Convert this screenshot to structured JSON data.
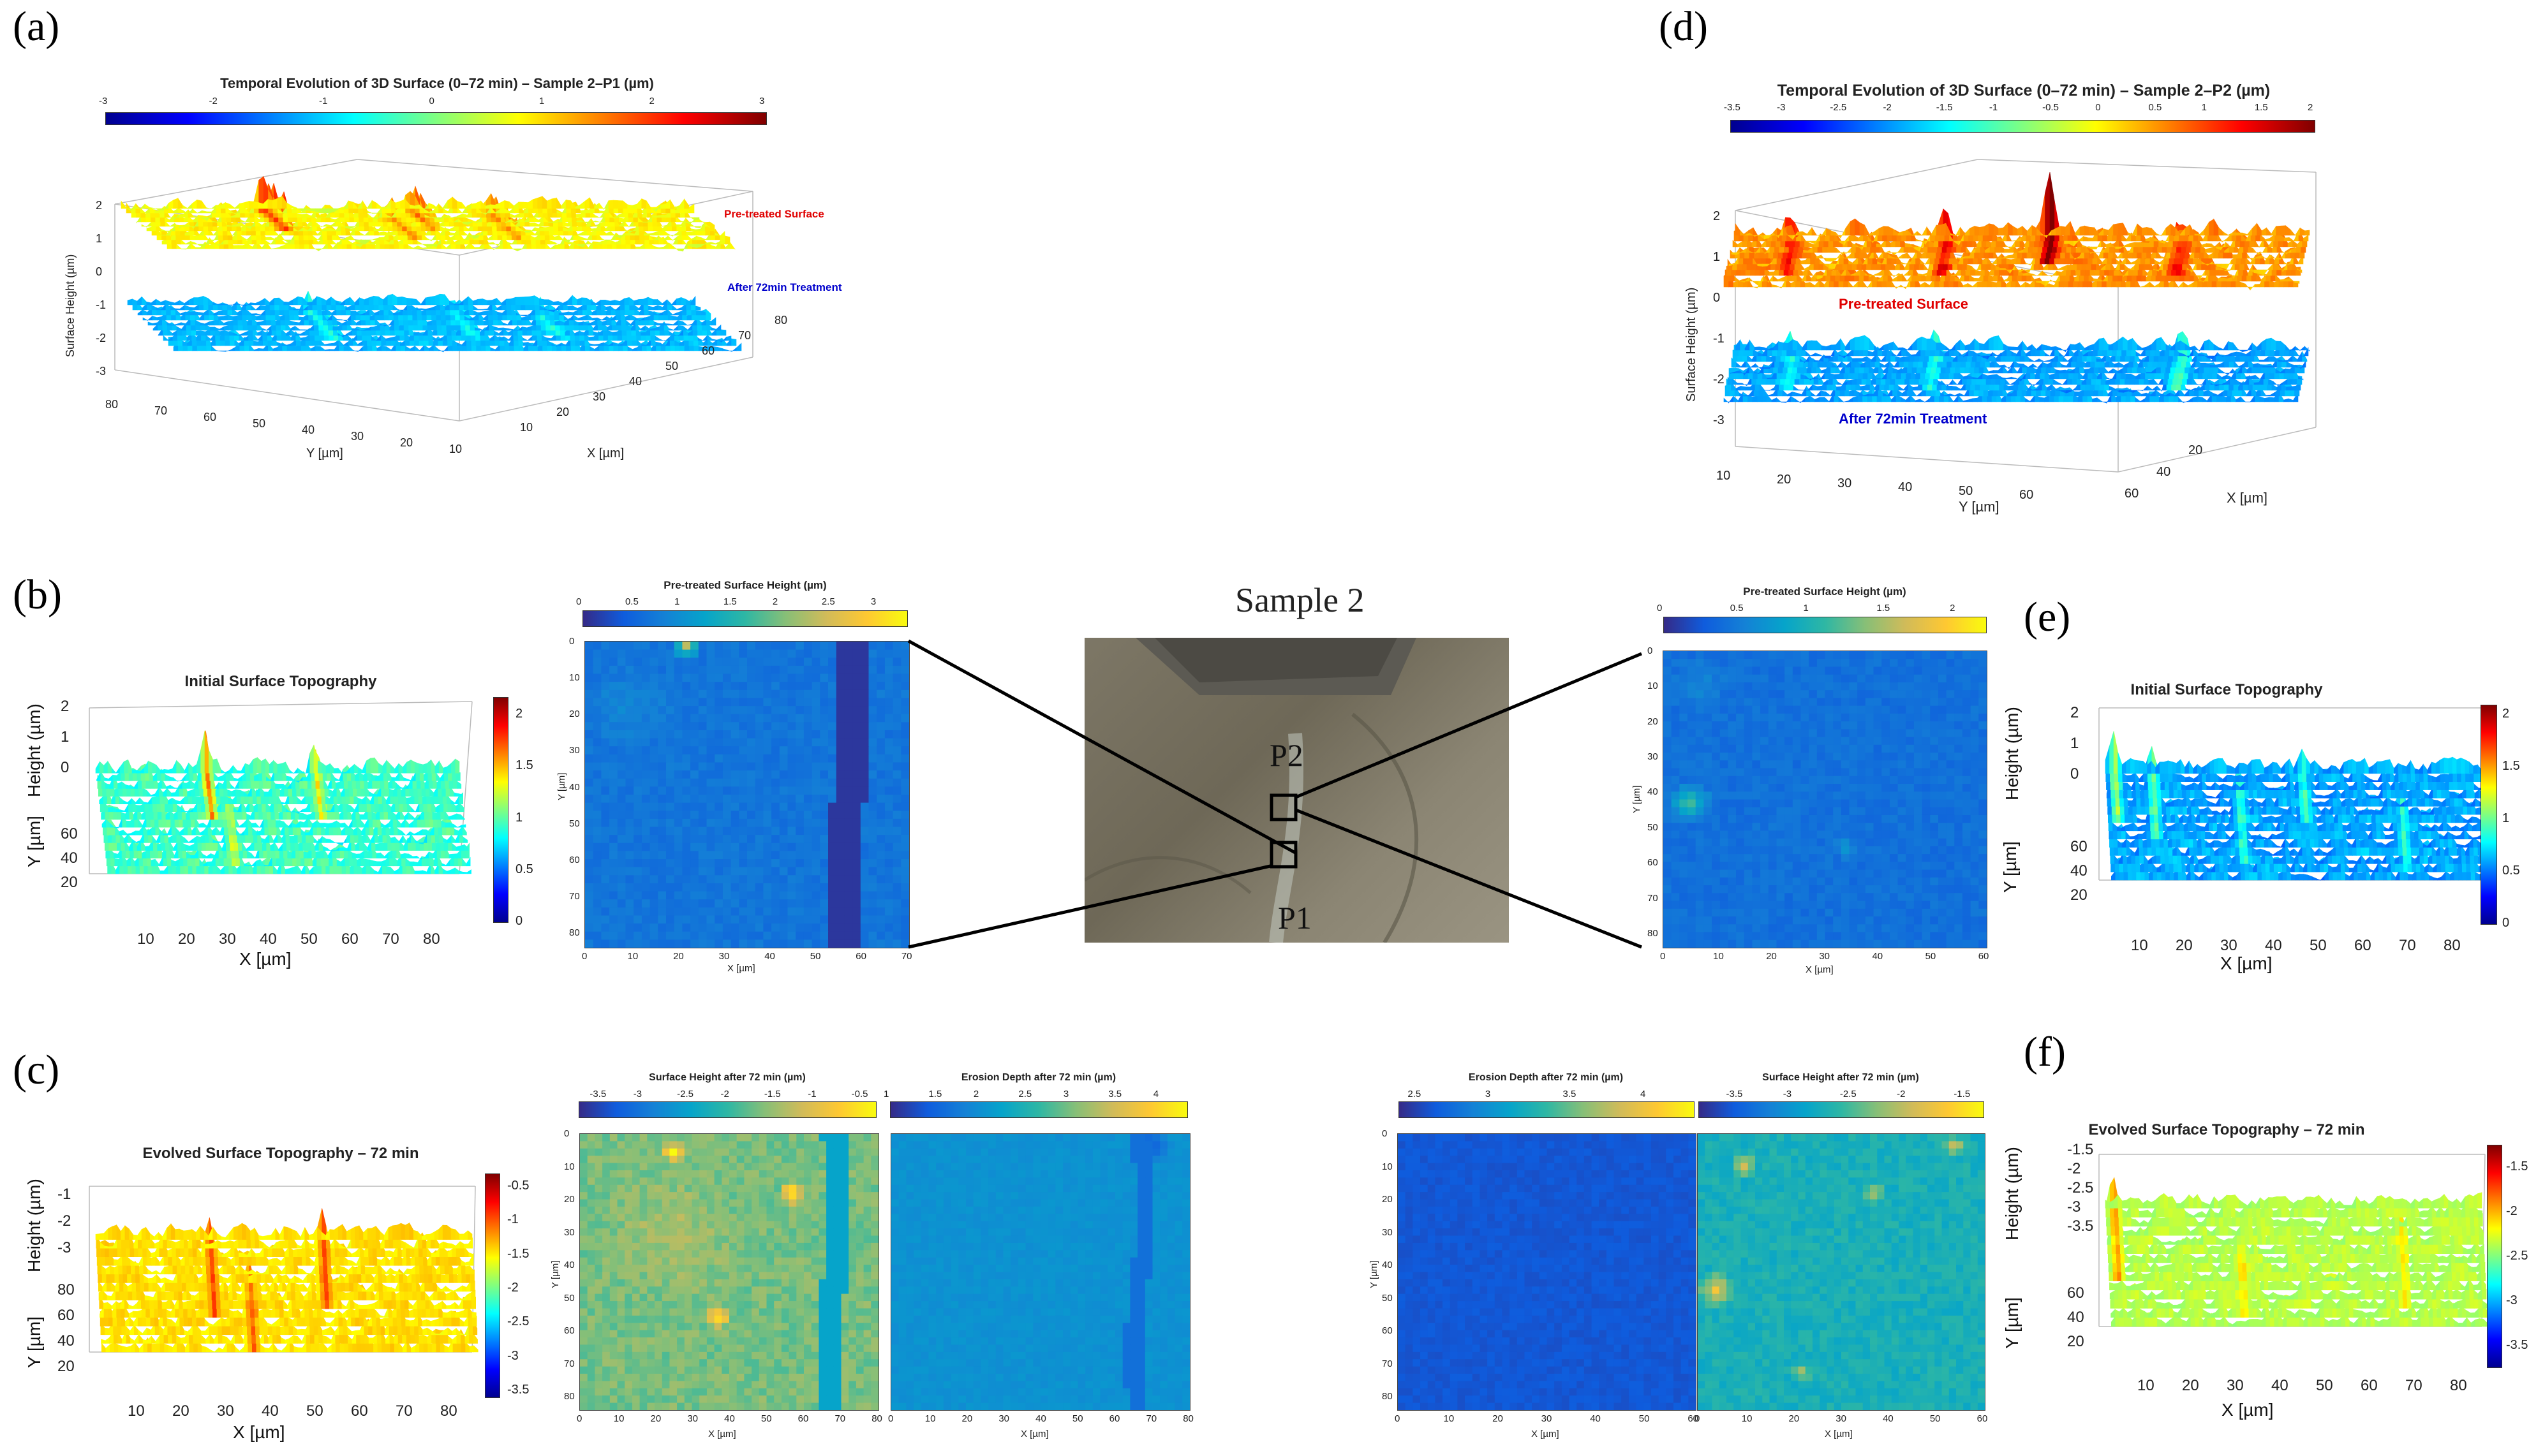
{
  "panel_labels": {
    "a": "(a)",
    "b": "(b)",
    "c": "(c)",
    "d": "(d)",
    "e": "(e)",
    "f": "(f)"
  },
  "center": {
    "title": "Sample 2",
    "p1": "P1",
    "p2": "P2"
  },
  "chart_data": [
    {
      "id": "a",
      "type": "surface3d",
      "title": "Temporal Evolution of 3D Surface (0–72 min) – Sample 2–P1 (µm)",
      "colorbar": {
        "min": -3,
        "max": 3,
        "ticks": [
          "-3",
          "-2",
          "-1",
          "0",
          "1",
          "2",
          "3"
        ]
      },
      "zlabel": "Surface Height (µm)",
      "zticks": [
        "2",
        "1",
        "0",
        "-1",
        "-2",
        "-3"
      ],
      "xlabel": "X [µm]",
      "xticks": [
        "10",
        "20",
        "30",
        "40",
        "50",
        "60",
        "70",
        "80"
      ],
      "ylabel": "Y [µm]",
      "yticks": [
        "80",
        "70",
        "60",
        "50",
        "40",
        "30",
        "20",
        "10"
      ],
      "annotations": [
        "Pre-treated Surface",
        "After 72min Treatment"
      ],
      "series": [
        {
          "name": "Pre-treated Surface",
          "mean_height": 1.0
        },
        {
          "name": "After 72min Treatment",
          "mean_height": -1.5
        }
      ]
    },
    {
      "id": "d",
      "type": "surface3d",
      "title": "Temporal Evolution of 3D Surface (0–72 min) – Sample 2–P2 (µm)",
      "colorbar": {
        "min": -3.5,
        "max": 2,
        "ticks": [
          "-3.5",
          "-3",
          "-2.5",
          "-2",
          "-1.5",
          "-1",
          "-0.5",
          "0",
          "0.5",
          "1",
          "1.5",
          "2"
        ]
      },
      "zlabel": "Surface Height (µm)",
      "zticks": [
        "2",
        "1",
        "0",
        "-1",
        "-2",
        "-3"
      ],
      "xlabel": "X [µm]",
      "xticks": [
        "20",
        "40",
        "60"
      ],
      "ylabel": "Y [µm]",
      "yticks": [
        "10",
        "20",
        "30",
        "40",
        "50",
        "60"
      ],
      "annotations": [
        "Pre-treated Surface",
        "After 72min Treatment"
      ],
      "series": [
        {
          "name": "Pre-treated Surface",
          "mean_height": 0.8
        },
        {
          "name": "After 72min Treatment",
          "mean_height": -2.2
        }
      ]
    },
    {
      "id": "b3d",
      "type": "surface3d",
      "title": "Initial Surface Topography",
      "colorbar": {
        "min": 0,
        "max": 2.2,
        "ticks": [
          "2",
          "1.5",
          "1",
          "0.5",
          "0"
        ]
      },
      "zlabel": "Height (µm)",
      "zticks": [
        "2",
        "1",
        "0"
      ],
      "ylabel": "Y [µm]",
      "yticks": [
        "60",
        "40",
        "20"
      ],
      "xlabel": "X [µm]",
      "xticks": [
        "10",
        "20",
        "30",
        "40",
        "50",
        "60",
        "70",
        "80"
      ]
    },
    {
      "id": "b2d",
      "type": "heatmap",
      "title": "Pre-treated Surface Height (µm)",
      "colorbar": {
        "min": 0,
        "max": 3.3,
        "ticks": [
          "0",
          "0.5",
          "1",
          "1.5",
          "2",
          "2.5",
          "3"
        ]
      },
      "xlabel": "X [µm]",
      "xticks": [
        "0",
        "10",
        "20",
        "30",
        "40",
        "50",
        "60",
        "70"
      ],
      "ylabel": "Y [µm]",
      "yticks": [
        "0",
        "10",
        "20",
        "30",
        "40",
        "50",
        "60",
        "70",
        "80"
      ]
    },
    {
      "id": "e2d",
      "type": "heatmap",
      "title": "Pre-treated Surface Height (µm)",
      "colorbar": {
        "min": 0,
        "max": 2.2,
        "ticks": [
          "0",
          "0.5",
          "1",
          "1.5",
          "2"
        ]
      },
      "xlabel": "X [µm]",
      "xticks": [
        "0",
        "10",
        "20",
        "30",
        "40",
        "50",
        "60"
      ],
      "ylabel": "Y [µm]",
      "yticks": [
        "0",
        "10",
        "20",
        "30",
        "40",
        "50",
        "60",
        "70",
        "80"
      ]
    },
    {
      "id": "e3d",
      "type": "surface3d",
      "title": "Initial Surface Topography",
      "colorbar": {
        "min": 0,
        "max": 2.1,
        "ticks": [
          "2",
          "1.5",
          "1",
          "0.5",
          "0"
        ]
      },
      "zlabel": "Height (µm)",
      "zticks": [
        "2",
        "1",
        "0"
      ],
      "ylabel": "Y [µm]",
      "yticks": [
        "60",
        "40",
        "20"
      ],
      "xlabel": "X [µm]",
      "xticks": [
        "10",
        "20",
        "30",
        "40",
        "50",
        "60",
        "70",
        "80"
      ]
    },
    {
      "id": "c3d",
      "type": "surface3d",
      "title": "Evolved Surface Topography – 72 min",
      "colorbar": {
        "min": -3.6,
        "max": -0.2,
        "ticks": [
          "-0.5",
          "-1",
          "-1.5",
          "-2",
          "-2.5",
          "-3",
          "-3.5"
        ]
      },
      "zlabel": "Height (µm)",
      "zticks": [
        "-1",
        "-2",
        "-3"
      ],
      "ylabel": "Y [µm]",
      "yticks": [
        "80",
        "60",
        "40",
        "20"
      ],
      "xlabel": "X [µm]",
      "xticks": [
        "10",
        "20",
        "30",
        "40",
        "50",
        "60",
        "70",
        "80"
      ]
    },
    {
      "id": "c2d_height",
      "type": "heatmap",
      "title": "Surface Height after 72 min (µm)",
      "colorbar": {
        "min": -3.7,
        "max": -0.3,
        "ticks": [
          "-3.5",
          "-3",
          "-2.5",
          "-2",
          "-1.5",
          "-1",
          "-0.5"
        ]
      },
      "xlabel": "X [µm]",
      "xticks": [
        "0",
        "10",
        "20",
        "30",
        "40",
        "50",
        "60",
        "70",
        "80"
      ],
      "ylabel": "Y [µm]",
      "yticks": [
        "0",
        "10",
        "20",
        "30",
        "40",
        "50",
        "60",
        "70",
        "80"
      ]
    },
    {
      "id": "c2d_erosion",
      "type": "heatmap",
      "title": "Erosion Depth after 72 min (µm)",
      "colorbar": {
        "min": 1,
        "max": 4.3,
        "ticks": [
          "1",
          "1.5",
          "2",
          "2.5",
          "3",
          "3.5",
          "4"
        ]
      },
      "xlabel": "X [µm]",
      "xticks": [
        "0",
        "10",
        "20",
        "30",
        "40",
        "50",
        "60",
        "70",
        "80"
      ]
    },
    {
      "id": "f2d_erosion",
      "type": "heatmap",
      "title": "Erosion Depth after 72 min (µm)",
      "colorbar": {
        "min": 2.4,
        "max": 4.3,
        "ticks": [
          "2.5",
          "3",
          "3.5",
          "4"
        ]
      },
      "xlabel": "X [µm]",
      "xticks": [
        "0",
        "10",
        "20",
        "30",
        "40",
        "50",
        "60"
      ],
      "ylabel": "Y [µm]",
      "yticks": [
        "0",
        "10",
        "20",
        "30",
        "40",
        "50",
        "60",
        "70",
        "80"
      ]
    },
    {
      "id": "f2d_height",
      "type": "heatmap",
      "title": "Surface Height after 72 min (µm)",
      "colorbar": {
        "min": -3.8,
        "max": -1.3,
        "ticks": [
          "-3.5",
          "-3",
          "-2.5",
          "-2",
          "-1.5"
        ]
      },
      "xlabel": "X [µm]",
      "xticks": [
        "0",
        "10",
        "20",
        "30",
        "40",
        "50",
        "60"
      ]
    },
    {
      "id": "f3d",
      "type": "surface3d",
      "title": "Evolved Surface Topography – 72 min",
      "colorbar": {
        "min": -3.8,
        "max": -1.3,
        "ticks": [
          "-1.5",
          "-2",
          "-2.5",
          "-3",
          "-3.5"
        ]
      },
      "zlabel": "Height (µm)",
      "zticks": [
        "-1.5",
        "-2",
        "-2.5",
        "-3",
        "-3.5"
      ],
      "ylabel": "Y [µm]",
      "yticks": [
        "60",
        "40",
        "20"
      ],
      "xlabel": "X [µm]",
      "xticks": [
        "10",
        "20",
        "30",
        "40",
        "50",
        "60",
        "70",
        "80"
      ]
    }
  ]
}
